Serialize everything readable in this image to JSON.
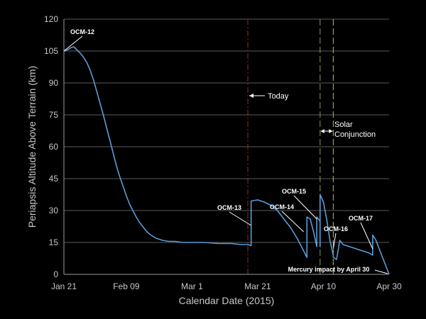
{
  "chart_data": {
    "type": "line",
    "xlabel": "Calendar Date (2015)",
    "ylabel": "Periapsis Altitude Above Terrain (km)",
    "xlim": [
      "2015-01-21",
      "2015-04-30"
    ],
    "ylim": [
      0,
      120
    ],
    "x_ticks": [
      {
        "date": "2015-01-21",
        "label": "Jan 21"
      },
      {
        "date": "2015-02-09",
        "label": "Feb 09"
      },
      {
        "date": "2015-03-01",
        "label": "Mar 1"
      },
      {
        "date": "2015-03-21",
        "label": "Mar 21"
      },
      {
        "date": "2015-04-10",
        "label": "Apr 10"
      },
      {
        "date": "2015-04-30",
        "label": "Apr 30"
      }
    ],
    "y_ticks": [
      0,
      15,
      30,
      45,
      60,
      75,
      90,
      105,
      120
    ],
    "grid": {
      "horizontal": true,
      "vertical": false
    },
    "series": [
      {
        "color": "#5b9bd5",
        "points": [
          [
            "2015-01-21",
            105
          ],
          [
            "2015-01-22",
            105.5
          ],
          [
            "2015-01-23",
            106.5
          ],
          [
            "2015-01-24",
            107
          ],
          [
            "2015-01-25",
            105.5
          ],
          [
            "2015-01-26",
            104
          ],
          [
            "2015-01-27",
            102
          ],
          [
            "2015-01-28",
            99.5
          ],
          [
            "2015-01-29",
            96
          ],
          [
            "2015-01-30",
            91.5
          ],
          [
            "2015-01-31",
            86
          ],
          [
            "2015-02-01",
            80.5
          ],
          [
            "2015-02-02",
            75
          ],
          [
            "2015-02-03",
            69
          ],
          [
            "2015-02-04",
            63
          ],
          [
            "2015-02-05",
            57
          ],
          [
            "2015-02-06",
            51
          ],
          [
            "2015-02-07",
            46
          ],
          [
            "2015-02-08",
            41.5
          ],
          [
            "2015-02-09",
            37
          ],
          [
            "2015-02-10",
            33
          ],
          [
            "2015-02-11",
            30
          ],
          [
            "2015-02-12",
            27
          ],
          [
            "2015-02-13",
            24.5
          ],
          [
            "2015-02-14",
            22.5
          ],
          [
            "2015-02-15",
            20.5
          ],
          [
            "2015-02-16",
            19
          ],
          [
            "2015-02-17",
            18
          ],
          [
            "2015-02-18",
            17
          ],
          [
            "2015-02-19",
            16.5
          ],
          [
            "2015-02-20",
            16
          ],
          [
            "2015-02-22",
            15.5
          ],
          [
            "2015-02-24",
            15.5
          ],
          [
            "2015-02-26",
            15
          ],
          [
            "2015-03-01",
            15
          ],
          [
            "2015-03-05",
            15
          ],
          [
            "2015-03-09",
            14.5
          ],
          [
            "2015-03-13",
            14.5
          ],
          [
            "2015-03-16",
            14
          ],
          [
            "2015-03-18",
            14
          ],
          [
            "2015-03-19",
            13.5
          ],
          [
            "2015-03-19",
            34.5
          ],
          [
            "2015-03-21",
            35
          ],
          [
            "2015-03-23",
            34
          ],
          [
            "2015-03-25",
            32.5
          ],
          [
            "2015-03-27",
            30
          ],
          [
            "2015-03-29",
            26
          ],
          [
            "2015-03-31",
            22
          ],
          [
            "2015-04-02",
            17
          ],
          [
            "2015-04-04",
            11
          ],
          [
            "2015-04-05",
            8
          ],
          [
            "2015-04-05",
            27
          ],
          [
            "2015-04-06",
            26
          ],
          [
            "2015-04-07",
            20
          ],
          [
            "2015-04-08",
            13
          ],
          [
            "2015-04-08",
            27
          ],
          [
            "2015-04-09",
            25
          ],
          [
            "2015-04-09",
            13
          ],
          [
            "2015-04-09",
            37.5
          ],
          [
            "2015-04-10",
            34
          ],
          [
            "2015-04-11",
            26
          ],
          [
            "2015-04-12",
            16
          ],
          [
            "2015-04-13",
            9
          ],
          [
            "2015-04-13",
            8
          ],
          [
            "2015-04-14",
            7
          ],
          [
            "2015-04-15",
            16
          ],
          [
            "2015-04-16",
            14
          ],
          [
            "2015-04-18",
            13
          ],
          [
            "2015-04-20",
            12
          ],
          [
            "2015-04-22",
            11
          ],
          [
            "2015-04-24",
            10
          ],
          [
            "2015-04-25",
            9
          ],
          [
            "2015-04-25",
            18.5
          ],
          [
            "2015-04-26",
            16
          ],
          [
            "2015-04-27",
            12
          ],
          [
            "2015-04-28",
            8
          ],
          [
            "2015-04-29",
            4
          ],
          [
            "2015-04-30",
            0
          ]
        ]
      }
    ],
    "vertical_lines": [
      {
        "date": "2015-03-18",
        "color": "#a0282b",
        "dash": "dash-dot"
      },
      {
        "date": "2015-04-09",
        "color": "#8a9a5b",
        "dash": "dashed"
      },
      {
        "date": "2015-04-13",
        "color": "#c0c040",
        "dash": "dashed"
      }
    ],
    "annotations": [
      {
        "text": "OCM-12",
        "date": "2015-01-21",
        "value": 105
      },
      {
        "text": "OCM-13",
        "date": "2015-03-19",
        "value": 23
      },
      {
        "text": "OCM-14",
        "date": "2015-04-04",
        "value": 20
      },
      {
        "text": "OCM-15",
        "date": "2015-04-08",
        "value": 26
      },
      {
        "text": "OCM-16",
        "date": "2015-04-13",
        "value": 12
      },
      {
        "text": "OCM-17",
        "date": "2015-04-25",
        "value": 12
      }
    ],
    "labels": {
      "today": "Today",
      "solar_line1": "Solar",
      "solar_line2": "Conjunction",
      "impact": "Mercury impact by April 30"
    }
  }
}
